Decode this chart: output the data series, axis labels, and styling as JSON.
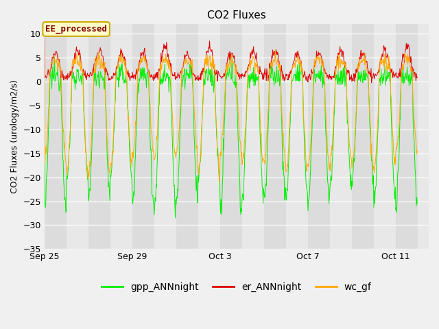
{
  "title": "CO2 Fluxes",
  "ylabel": "CO2 Fluxes (urology/m2/s)",
  "ylim": [
    -35,
    12
  ],
  "yticks": [
    -35,
    -30,
    -25,
    -20,
    -15,
    -10,
    -5,
    0,
    5,
    10
  ],
  "annotation_text": "EE_processed",
  "legend_labels": [
    "gpp_ANNnight",
    "er_ANNnight",
    "wc_gf"
  ],
  "line_colors": {
    "gpp": "#00ee00",
    "er": "#dd0000",
    "wc": "#ffaa00"
  },
  "fig_bg_color": "#f0f0f0",
  "plot_bg_color": "#e8e8e8",
  "n_days": 17,
  "points_per_day": 48,
  "title_fontsize": 11,
  "axis_fontsize": 9,
  "legend_fontsize": 10
}
